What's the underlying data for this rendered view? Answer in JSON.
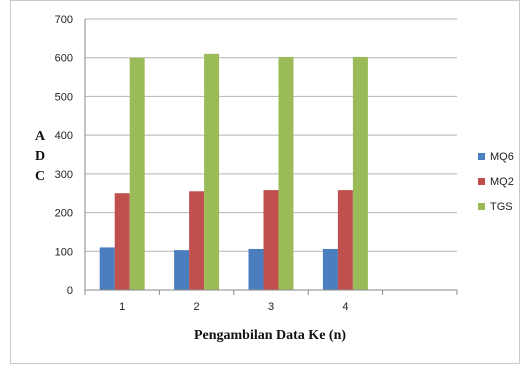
{
  "chart_data": {
    "type": "bar",
    "categories": [
      "1",
      "2",
      "3",
      "4",
      ""
    ],
    "series": [
      {
        "name": "MQ6",
        "values": [
          110,
          103,
          106,
          106,
          null
        ],
        "color": "#4a7ebf"
      },
      {
        "name": "MQ2",
        "values": [
          250,
          255,
          258,
          258,
          null
        ],
        "color": "#c0504d"
      },
      {
        "name": "TGS",
        "values": [
          600,
          610,
          602,
          602,
          null
        ],
        "color": "#9bbb59"
      }
    ],
    "title": "",
    "xlabel": "Pengambilan Data Ke (n)",
    "ylabel": "A\nD\nC",
    "ylim": [
      0,
      700
    ],
    "yticks": [
      0,
      100,
      200,
      300,
      400,
      500,
      600,
      700
    ],
    "grid": true,
    "legend": "right"
  }
}
